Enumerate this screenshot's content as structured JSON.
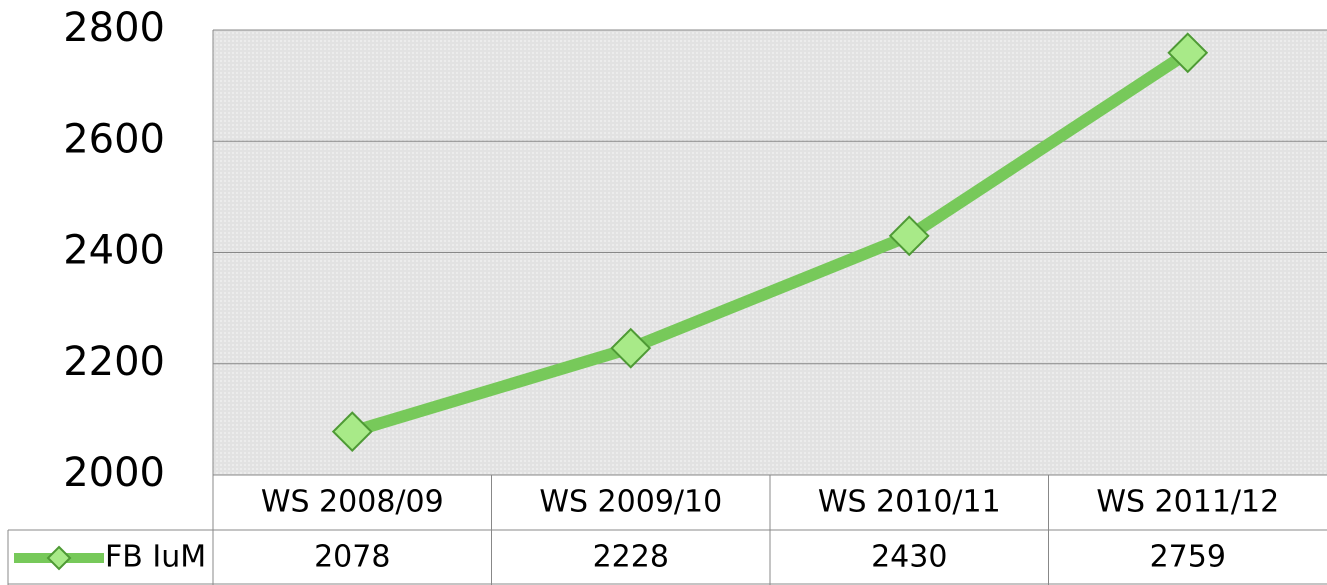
{
  "chart_data": {
    "type": "line",
    "categories": [
      "WS 2008/09",
      "WS 2009/10",
      "WS 2010/11",
      "WS 2011/12"
    ],
    "series": [
      {
        "name": "FB IuM",
        "color": "#77c95a",
        "values": [
          2078,
          2228,
          2430,
          2759
        ]
      }
    ],
    "ylim": [
      2000,
      2800
    ],
    "yticks": [
      2000,
      2200,
      2400,
      2600,
      2800
    ],
    "grid": true
  }
}
